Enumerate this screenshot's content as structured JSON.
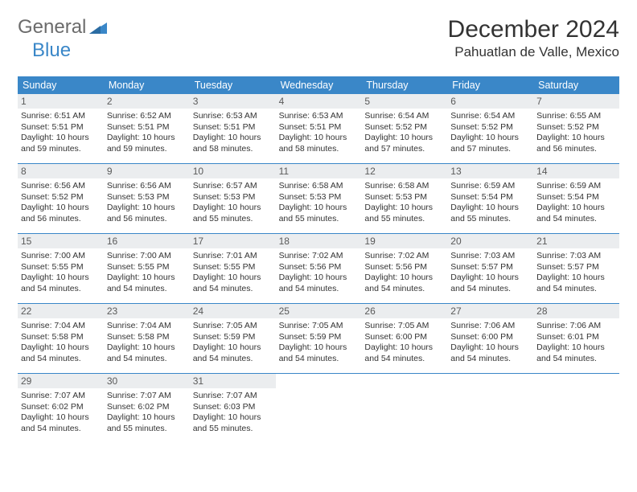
{
  "brand": {
    "part1": "General",
    "part2": "Blue"
  },
  "title": "December 2024",
  "location": "Pahuatlan de Valle, Mexico",
  "colors": {
    "header_bg": "#3a87c8",
    "date_bg": "#ebedef",
    "rule": "#3a87c8",
    "text": "#333333",
    "logo_gray": "#6b6b6b",
    "logo_blue": "#3a87c8"
  },
  "weekdays": [
    "Sunday",
    "Monday",
    "Tuesday",
    "Wednesday",
    "Thursday",
    "Friday",
    "Saturday"
  ],
  "weeks": [
    [
      {
        "d": "1",
        "sr": "Sunrise: 6:51 AM",
        "ss": "Sunset: 5:51 PM",
        "dl": "Daylight: 10 hours and 59 minutes."
      },
      {
        "d": "2",
        "sr": "Sunrise: 6:52 AM",
        "ss": "Sunset: 5:51 PM",
        "dl": "Daylight: 10 hours and 59 minutes."
      },
      {
        "d": "3",
        "sr": "Sunrise: 6:53 AM",
        "ss": "Sunset: 5:51 PM",
        "dl": "Daylight: 10 hours and 58 minutes."
      },
      {
        "d": "4",
        "sr": "Sunrise: 6:53 AM",
        "ss": "Sunset: 5:51 PM",
        "dl": "Daylight: 10 hours and 58 minutes."
      },
      {
        "d": "5",
        "sr": "Sunrise: 6:54 AM",
        "ss": "Sunset: 5:52 PM",
        "dl": "Daylight: 10 hours and 57 minutes."
      },
      {
        "d": "6",
        "sr": "Sunrise: 6:54 AM",
        "ss": "Sunset: 5:52 PM",
        "dl": "Daylight: 10 hours and 57 minutes."
      },
      {
        "d": "7",
        "sr": "Sunrise: 6:55 AM",
        "ss": "Sunset: 5:52 PM",
        "dl": "Daylight: 10 hours and 56 minutes."
      }
    ],
    [
      {
        "d": "8",
        "sr": "Sunrise: 6:56 AM",
        "ss": "Sunset: 5:52 PM",
        "dl": "Daylight: 10 hours and 56 minutes."
      },
      {
        "d": "9",
        "sr": "Sunrise: 6:56 AM",
        "ss": "Sunset: 5:53 PM",
        "dl": "Daylight: 10 hours and 56 minutes."
      },
      {
        "d": "10",
        "sr": "Sunrise: 6:57 AM",
        "ss": "Sunset: 5:53 PM",
        "dl": "Daylight: 10 hours and 55 minutes."
      },
      {
        "d": "11",
        "sr": "Sunrise: 6:58 AM",
        "ss": "Sunset: 5:53 PM",
        "dl": "Daylight: 10 hours and 55 minutes."
      },
      {
        "d": "12",
        "sr": "Sunrise: 6:58 AM",
        "ss": "Sunset: 5:53 PM",
        "dl": "Daylight: 10 hours and 55 minutes."
      },
      {
        "d": "13",
        "sr": "Sunrise: 6:59 AM",
        "ss": "Sunset: 5:54 PM",
        "dl": "Daylight: 10 hours and 55 minutes."
      },
      {
        "d": "14",
        "sr": "Sunrise: 6:59 AM",
        "ss": "Sunset: 5:54 PM",
        "dl": "Daylight: 10 hours and 54 minutes."
      }
    ],
    [
      {
        "d": "15",
        "sr": "Sunrise: 7:00 AM",
        "ss": "Sunset: 5:55 PM",
        "dl": "Daylight: 10 hours and 54 minutes."
      },
      {
        "d": "16",
        "sr": "Sunrise: 7:00 AM",
        "ss": "Sunset: 5:55 PM",
        "dl": "Daylight: 10 hours and 54 minutes."
      },
      {
        "d": "17",
        "sr": "Sunrise: 7:01 AM",
        "ss": "Sunset: 5:55 PM",
        "dl": "Daylight: 10 hours and 54 minutes."
      },
      {
        "d": "18",
        "sr": "Sunrise: 7:02 AM",
        "ss": "Sunset: 5:56 PM",
        "dl": "Daylight: 10 hours and 54 minutes."
      },
      {
        "d": "19",
        "sr": "Sunrise: 7:02 AM",
        "ss": "Sunset: 5:56 PM",
        "dl": "Daylight: 10 hours and 54 minutes."
      },
      {
        "d": "20",
        "sr": "Sunrise: 7:03 AM",
        "ss": "Sunset: 5:57 PM",
        "dl": "Daylight: 10 hours and 54 minutes."
      },
      {
        "d": "21",
        "sr": "Sunrise: 7:03 AM",
        "ss": "Sunset: 5:57 PM",
        "dl": "Daylight: 10 hours and 54 minutes."
      }
    ],
    [
      {
        "d": "22",
        "sr": "Sunrise: 7:04 AM",
        "ss": "Sunset: 5:58 PM",
        "dl": "Daylight: 10 hours and 54 minutes."
      },
      {
        "d": "23",
        "sr": "Sunrise: 7:04 AM",
        "ss": "Sunset: 5:58 PM",
        "dl": "Daylight: 10 hours and 54 minutes."
      },
      {
        "d": "24",
        "sr": "Sunrise: 7:05 AM",
        "ss": "Sunset: 5:59 PM",
        "dl": "Daylight: 10 hours and 54 minutes."
      },
      {
        "d": "25",
        "sr": "Sunrise: 7:05 AM",
        "ss": "Sunset: 5:59 PM",
        "dl": "Daylight: 10 hours and 54 minutes."
      },
      {
        "d": "26",
        "sr": "Sunrise: 7:05 AM",
        "ss": "Sunset: 6:00 PM",
        "dl": "Daylight: 10 hours and 54 minutes."
      },
      {
        "d": "27",
        "sr": "Sunrise: 7:06 AM",
        "ss": "Sunset: 6:00 PM",
        "dl": "Daylight: 10 hours and 54 minutes."
      },
      {
        "d": "28",
        "sr": "Sunrise: 7:06 AM",
        "ss": "Sunset: 6:01 PM",
        "dl": "Daylight: 10 hours and 54 minutes."
      }
    ],
    [
      {
        "d": "29",
        "sr": "Sunrise: 7:07 AM",
        "ss": "Sunset: 6:02 PM",
        "dl": "Daylight: 10 hours and 54 minutes."
      },
      {
        "d": "30",
        "sr": "Sunrise: 7:07 AM",
        "ss": "Sunset: 6:02 PM",
        "dl": "Daylight: 10 hours and 55 minutes."
      },
      {
        "d": "31",
        "sr": "Sunrise: 7:07 AM",
        "ss": "Sunset: 6:03 PM",
        "dl": "Daylight: 10 hours and 55 minutes."
      },
      null,
      null,
      null,
      null
    ]
  ]
}
